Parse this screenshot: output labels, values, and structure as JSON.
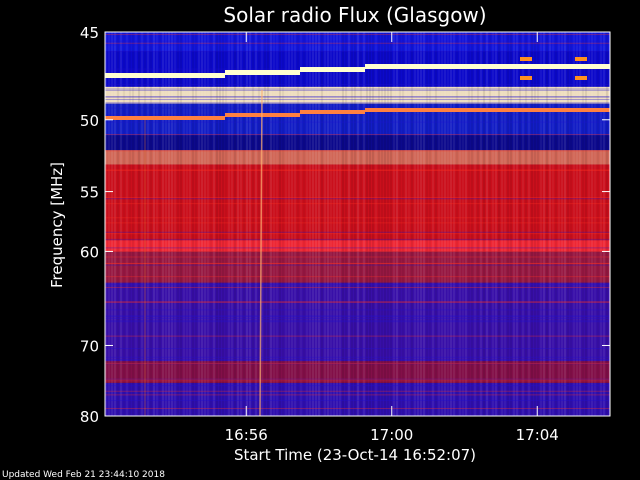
{
  "chart_data": {
    "type": "heatmap",
    "title": "Solar radio Flux (Glasgow)",
    "ylabel": "Frequency [MHz]",
    "xlabel": "Start Time (23-Oct-14 16:52:07)",
    "x_start": "16:52:07",
    "x_end": "17:06:00",
    "x_ticks": [
      {
        "time": "16:56",
        "label": "16:56"
      },
      {
        "time": "17:00",
        "label": "17:00"
      },
      {
        "time": "17:04",
        "label": "17:04"
      }
    ],
    "ylim": [
      45,
      80
    ],
    "y_ticks": [
      {
        "value": 45,
        "label": "45"
      },
      {
        "value": 50,
        "label": "50"
      },
      {
        "value": 55,
        "label": "55"
      },
      {
        "value": 60,
        "label": "60"
      },
      {
        "value": 70,
        "label": "70"
      },
      {
        "value": 80,
        "label": "80"
      }
    ],
    "bands": [
      {
        "from": 45,
        "to": 46,
        "color": "#1018e0"
      },
      {
        "from": 46,
        "to": 48,
        "color": "#0a0acd"
      },
      {
        "from": 48,
        "to": 49,
        "color": "#fff0c0"
      },
      {
        "from": 49,
        "to": 51,
        "color": "#1020c8"
      },
      {
        "from": 51,
        "to": 52,
        "color": "#0a0a8a"
      },
      {
        "from": 52,
        "to": 53,
        "color": "#e07050"
      },
      {
        "from": 53,
        "to": 59,
        "color": "#d81010"
      },
      {
        "from": 59,
        "to": 60,
        "color": "#ff2a2a"
      },
      {
        "from": 60,
        "to": 63,
        "color": "#a01a3a"
      },
      {
        "from": 63,
        "to": 72,
        "color": "#3a10a8"
      },
      {
        "from": 72,
        "to": 75,
        "color": "#8a1040"
      },
      {
        "from": 75,
        "to": 80,
        "color": "#3010b0"
      }
    ],
    "colors": {
      "hot": "#ff2020",
      "cold": "#1010c0",
      "line": "#ffffd0"
    }
  },
  "footer": "Updated Wed Feb 21 23:44:10 2018"
}
